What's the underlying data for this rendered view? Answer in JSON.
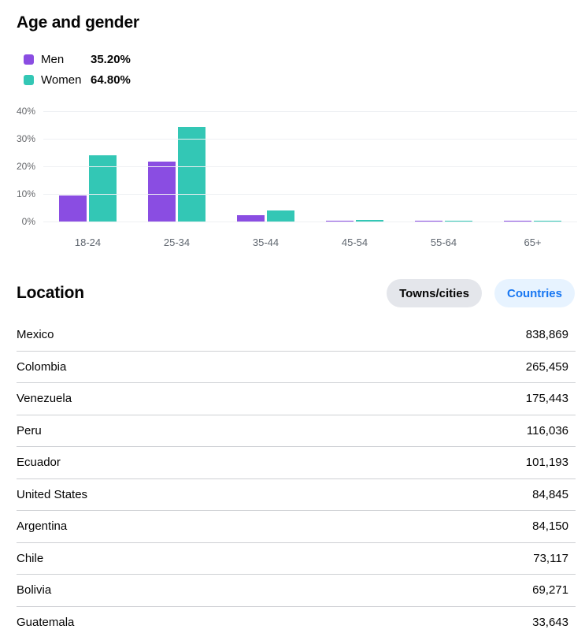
{
  "age_gender": {
    "title": "Age and gender",
    "legend": [
      {
        "name": "men",
        "label": "Men",
        "value": "35.20%",
        "color": "#8a4de2"
      },
      {
        "name": "women",
        "label": "Women",
        "value": "64.80%",
        "color": "#33c7b5"
      }
    ]
  },
  "chart_data": {
    "type": "bar",
    "title": "Age and gender",
    "categories": [
      "18-24",
      "25-34",
      "35-44",
      "45-54",
      "55-64",
      "65+"
    ],
    "series": [
      {
        "name": "Men",
        "color": "#8a4de2",
        "values": [
          9.7,
          22.0,
          2.7,
          0.6,
          0.4,
          0.4
        ]
      },
      {
        "name": "Women",
        "color": "#33c7b5",
        "values": [
          24.2,
          34.7,
          4.2,
          0.9,
          0.5,
          0.5
        ]
      }
    ],
    "xlabel": "",
    "ylabel": "",
    "yticks": [
      "0%",
      "10%",
      "20%",
      "30%",
      "40%"
    ],
    "ylim": [
      0,
      40
    ],
    "grid": true,
    "legend_position": "top-left"
  },
  "location": {
    "title": "Location",
    "buttons": [
      {
        "label": "Towns/cities",
        "active": false
      },
      {
        "label": "Countries",
        "active": true
      }
    ],
    "rows": [
      {
        "name": "Mexico",
        "value": "838,869"
      },
      {
        "name": "Colombia",
        "value": "265,459"
      },
      {
        "name": "Venezuela",
        "value": "175,443"
      },
      {
        "name": "Peru",
        "value": "116,036"
      },
      {
        "name": "Ecuador",
        "value": "101,193"
      },
      {
        "name": "United States",
        "value": "84,845"
      },
      {
        "name": "Argentina",
        "value": "84,150"
      },
      {
        "name": "Chile",
        "value": "73,117"
      },
      {
        "name": "Bolivia",
        "value": "69,271"
      },
      {
        "name": "Guatemala",
        "value": "33,643"
      }
    ]
  },
  "colors": {
    "men": "#8a4de2",
    "women": "#33c7b5",
    "accent_blue": "#1877f2",
    "pill_gray_bg": "#e4e6eb",
    "pill_blue_bg": "#e7f3ff",
    "axis_text": "#65676b",
    "gridline": "#eef0f3",
    "divider": "#ced0d4",
    "text": "#050505"
  }
}
